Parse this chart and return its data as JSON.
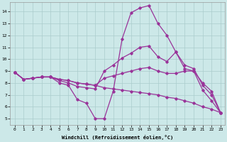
{
  "xlabel": "Windchill (Refroidissement éolien,°C)",
  "bg_color": "#cce8e8",
  "line_color": "#993399",
  "grid_color": "#aacccc",
  "xlim_min": -0.5,
  "xlim_max": 23.5,
  "ylim_min": 4.5,
  "ylim_max": 14.8,
  "xticks": [
    0,
    1,
    2,
    3,
    4,
    5,
    6,
    7,
    8,
    9,
    10,
    11,
    12,
    13,
    14,
    15,
    16,
    17,
    18,
    19,
    20,
    21,
    22,
    23
  ],
  "yticks": [
    5,
    6,
    7,
    8,
    9,
    10,
    11,
    12,
    13,
    14
  ],
  "curves": [
    [
      8.9,
      8.3,
      8.4,
      8.5,
      8.5,
      8.0,
      7.8,
      6.6,
      6.3,
      5.0,
      5.0,
      7.3,
      11.7,
      13.9,
      14.3,
      14.5,
      13.0,
      12.0,
      10.6,
      9.2,
      9.0,
      7.4,
      6.5,
      5.5
    ],
    [
      8.9,
      8.3,
      8.4,
      8.5,
      8.5,
      8.2,
      8.0,
      7.7,
      7.6,
      7.5,
      9.0,
      9.5,
      10.1,
      10.5,
      11.0,
      11.1,
      10.2,
      9.8,
      10.6,
      9.5,
      9.2,
      7.8,
      7.0,
      5.5
    ],
    [
      8.9,
      8.3,
      8.4,
      8.5,
      8.5,
      8.3,
      8.2,
      8.0,
      7.9,
      7.8,
      8.4,
      8.6,
      8.8,
      9.0,
      9.2,
      9.3,
      9.0,
      8.8,
      8.8,
      9.0,
      9.0,
      8.0,
      7.3,
      5.5
    ],
    [
      8.9,
      8.3,
      8.4,
      8.5,
      8.5,
      8.3,
      8.2,
      8.0,
      7.9,
      7.8,
      7.6,
      7.5,
      7.4,
      7.3,
      7.2,
      7.1,
      7.0,
      6.8,
      6.7,
      6.5,
      6.3,
      6.0,
      5.8,
      5.5
    ]
  ]
}
